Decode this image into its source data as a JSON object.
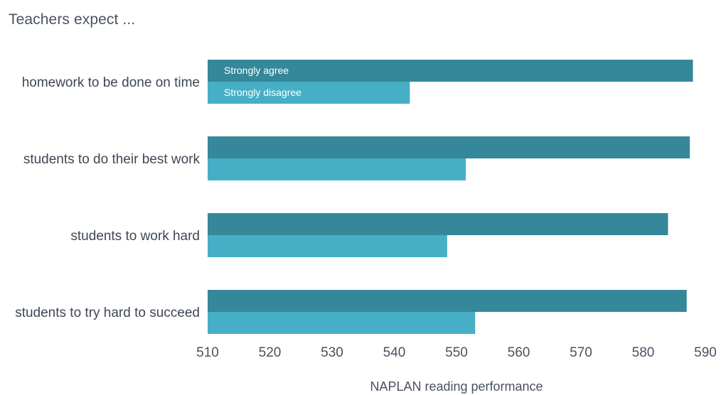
{
  "title": "Teachers expect ...",
  "chart_data": {
    "type": "bar",
    "orientation": "horizontal",
    "title": "Teachers expect ...",
    "xlabel": "NAPLAN reading performance",
    "ylabel": "",
    "xlim": [
      510,
      590
    ],
    "xticks": [
      510,
      520,
      530,
      540,
      550,
      560,
      570,
      580,
      590
    ],
    "grid": false,
    "legend_placement": "inside-top-left",
    "categories": [
      "homework to be done on time",
      "students to do their best work",
      "students to work hard",
      "students to try hard to succeed"
    ],
    "series": [
      {
        "name": "Strongly agree",
        "color": "#35889a",
        "values": [
          588,
          587.5,
          584,
          587
        ]
      },
      {
        "name": "Strongly disagree",
        "color": "#47afc5",
        "values": [
          542.5,
          551.5,
          548.5,
          553
        ]
      }
    ]
  }
}
